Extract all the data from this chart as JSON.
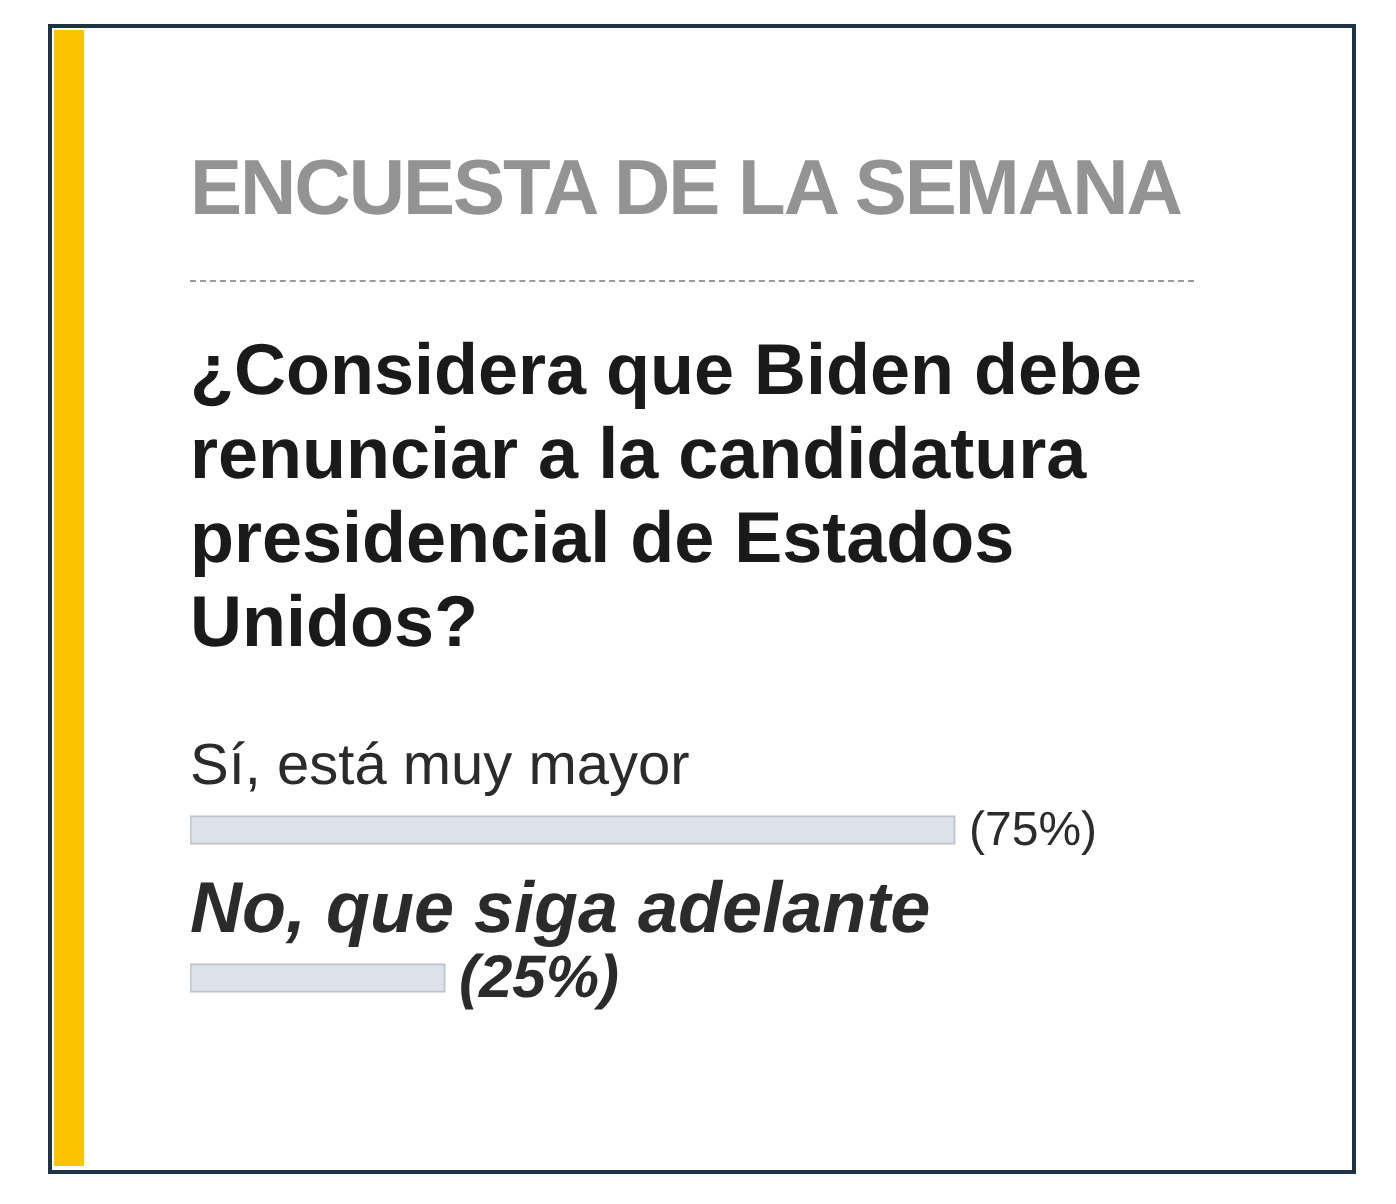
{
  "chart_data": {
    "type": "bar",
    "orientation": "horizontal",
    "title": "ENCUESTA DE LA SEMANA",
    "subtitle": "¿Considera que Biden debe renunciar a la candidatura presidencial de Estados Unidos?",
    "categories": [
      "Sí, está muy mayor",
      "No, que siga adelante"
    ],
    "values": [
      75,
      25
    ],
    "value_labels": [
      "(75%)",
      "(25%)"
    ],
    "color": "#dde1ea",
    "tick_labels": "y"
  }
}
